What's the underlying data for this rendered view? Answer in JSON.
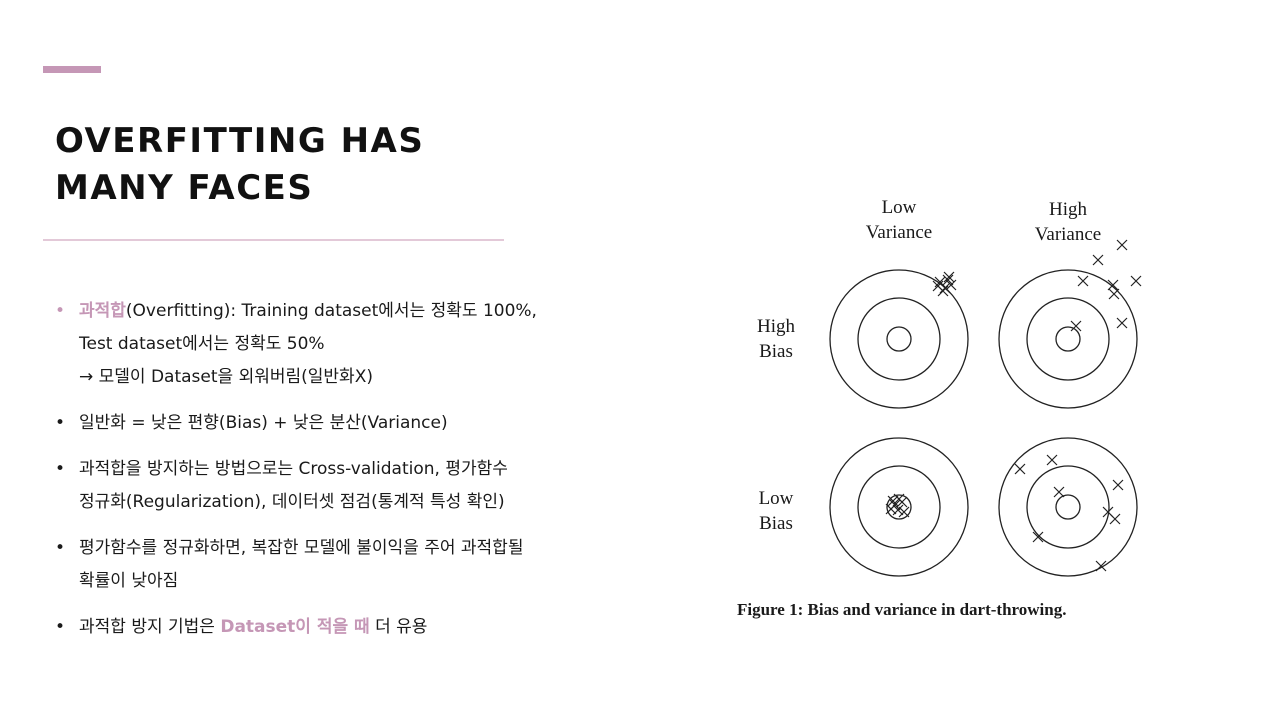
{
  "colors": {
    "accent": "#c597b6",
    "divider": "#e3c9d8",
    "text": "#1a1a1a"
  },
  "title": {
    "line1": "OVERFITTING HAS",
    "line2": "MANY FACES"
  },
  "bullets": [
    {
      "dot_color": "accent",
      "highlight": "과적합",
      "line1_rest": "(Overfitting): Training dataset에서는 정확도 100%,",
      "line2": "Test dataset에서는 정확도 50%",
      "line3": "→ 모델이 Dataset을 외워버림(일반화X)"
    },
    {
      "text": "일반화 = 낮은 편향(Bias) + 낮은 분산(Variance)"
    },
    {
      "line1": "과적합을 방지하는 방법으로는 Cross-validation, 평가함수",
      "line2": "정규화(Regularization), 데이터셋 점검(통계적 특성 확인)"
    },
    {
      "line1": "평가함수를 정규화하면, 복잡한 모델에 불이익을 주어 과적합될",
      "line2": "확률이 낮아짐"
    },
    {
      "before": "과적합 방지 기법은 ",
      "highlight": "Dataset이 적을 때",
      "after": " 더 유용"
    }
  ],
  "figure": {
    "col_low_variance": [
      "Low",
      "Variance"
    ],
    "col_high_variance": [
      "High",
      "Variance"
    ],
    "row_high_bias": [
      "High",
      "Bias"
    ],
    "row_low_bias": [
      "Low",
      "Bias"
    ],
    "caption": "Figure 1:  Bias and variance in dart-throwing."
  }
}
